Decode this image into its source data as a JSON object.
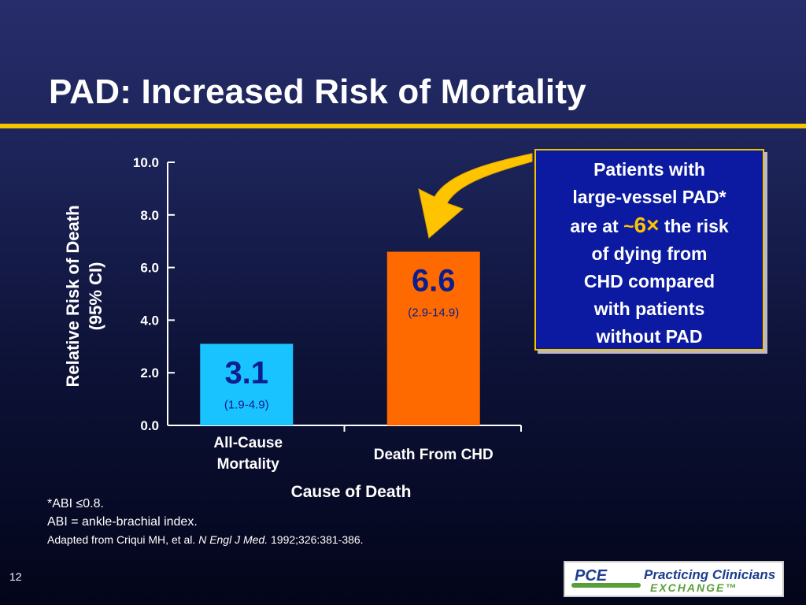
{
  "slide": {
    "title": "PAD: Increased Risk of Mortality",
    "page_number": "12",
    "accent_color": "#f5c400",
    "background_color": "#1d2459"
  },
  "chart_data": {
    "type": "bar",
    "title": "",
    "xlabel": "Cause of Death",
    "ylabel_lines": [
      "Relative Risk of Death",
      "(95% CI)"
    ],
    "ylim": [
      0,
      10
    ],
    "yticks": [
      "0.0",
      "2.0",
      "4.0",
      "6.0",
      "8.0",
      "10.0"
    ],
    "grid": false,
    "categories": [
      {
        "lines": [
          "All-Cause",
          "Mortality"
        ]
      },
      {
        "lines": [
          "Death From CHD"
        ]
      }
    ],
    "values": [
      3.1,
      6.6
    ],
    "value_labels": [
      "3.1",
      "6.6"
    ],
    "ci_labels": [
      "(1.9-4.9)",
      "(2.9-14.9)"
    ],
    "bar_colors": [
      "#19c3ff",
      "#ff6a00"
    ],
    "value_label_color": "#0a1e8c"
  },
  "callout": {
    "line1": "Patients with",
    "line2": "large-vessel PAD*",
    "line3_pre": "are at ",
    "line3_tilde": "~",
    "line3_value": "6×",
    "line3_post": " the risk",
    "line4": "of dying from",
    "line5": "CHD compared",
    "line6": "with patients",
    "line7": "without PAD",
    "highlight_color": "#ffc400",
    "border_color": "#f5c400"
  },
  "footnotes": {
    "abi_threshold": "*ABI ≤0.8.",
    "abi_definition": "ABI = ankle-brachial index.",
    "source_pre": "Adapted from Criqui MH, et al. ",
    "source_journal": "N Engl J Med.",
    "source_post": " 1992;326:381-386."
  },
  "logo": {
    "mark": "PCE",
    "name": "Practicing Clinicians",
    "sub": "EXCHANGE™"
  }
}
